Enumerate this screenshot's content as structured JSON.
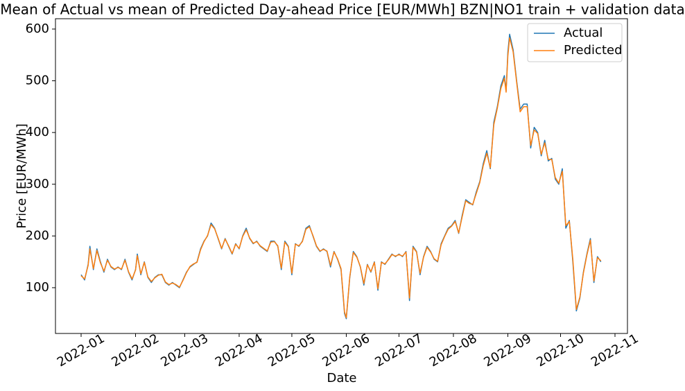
{
  "chart_data": {
    "type": "line",
    "title": "Mean of Actual vs mean of Predicted Day-ahead Price [EUR/MWh] BZN|NO1 train + validation data",
    "x_label": "Date",
    "y_label": "Price [EUR/MWh]",
    "x": [
      0,
      2,
      4,
      5,
      7,
      9,
      11,
      13,
      15,
      17,
      19,
      21,
      23,
      25,
      27,
      29,
      31,
      32,
      34,
      36,
      38,
      40,
      42,
      44,
      46,
      48,
      50,
      52,
      54,
      56,
      58,
      60,
      62,
      64,
      66,
      68,
      70,
      72,
      74,
      76,
      78,
      80,
      82,
      84,
      86,
      88,
      90,
      92,
      94,
      96,
      98,
      100,
      102,
      104,
      106,
      108,
      110,
      112,
      114,
      116,
      118,
      120,
      122,
      124,
      126,
      128,
      130,
      132,
      134,
      136,
      138,
      140,
      142,
      144,
      146,
      148,
      150,
      151,
      153,
      155,
      157,
      159,
      161,
      163,
      165,
      167,
      169,
      171,
      173,
      175,
      177,
      179,
      181,
      183,
      185,
      187,
      189,
      191,
      193,
      195,
      197,
      199,
      201,
      203,
      205,
      207,
      209,
      211,
      213,
      215,
      217,
      219,
      221,
      223,
      225,
      227,
      229,
      231,
      233,
      235,
      237,
      239,
      241,
      242,
      243,
      244,
      246,
      248,
      250,
      252,
      254,
      256,
      258,
      260,
      262,
      264,
      266,
      268,
      270,
      272,
      274,
      276,
      278,
      280,
      282,
      284,
      286,
      288,
      290,
      292,
      294,
      296
    ],
    "series": [
      {
        "name": "Actual",
        "color": "#1f77b4",
        "values": [
          125,
          115,
          145,
          180,
          135,
          175,
          150,
          130,
          155,
          140,
          135,
          140,
          135,
          155,
          130,
          115,
          135,
          165,
          125,
          150,
          120,
          110,
          120,
          125,
          125,
          110,
          105,
          110,
          105,
          100,
          115,
          130,
          140,
          145,
          150,
          175,
          190,
          200,
          225,
          215,
          195,
          175,
          195,
          180,
          165,
          185,
          175,
          200,
          215,
          195,
          185,
          190,
          180,
          175,
          170,
          190,
          190,
          180,
          135,
          190,
          180,
          125,
          185,
          180,
          190,
          215,
          220,
          200,
          180,
          170,
          175,
          170,
          140,
          170,
          155,
          135,
          50,
          40,
          120,
          170,
          160,
          140,
          105,
          145,
          130,
          150,
          95,
          150,
          145,
          155,
          165,
          160,
          165,
          160,
          170,
          75,
          180,
          170,
          125,
          160,
          180,
          170,
          155,
          150,
          185,
          200,
          215,
          220,
          230,
          205,
          240,
          270,
          265,
          260,
          285,
          305,
          340,
          365,
          330,
          420,
          450,
          490,
          510,
          480,
          555,
          590,
          560,
          500,
          445,
          455,
          455,
          370,
          410,
          400,
          355,
          385,
          345,
          350,
          310,
          300,
          330,
          215,
          230,
          150,
          55,
          80,
          130,
          165,
          195,
          110,
          160,
          150
        ]
      },
      {
        "name": "Predicted",
        "color": "#ff7f0e",
        "values": [
          123,
          117,
          143,
          175,
          137,
          172,
          148,
          132,
          153,
          141,
          136,
          139,
          136,
          153,
          131,
          117,
          134,
          162,
          127,
          149,
          121,
          112,
          119,
          124,
          126,
          111,
          106,
          109,
          106,
          101,
          114,
          129,
          141,
          146,
          149,
          173,
          189,
          201,
          222,
          214,
          196,
          176,
          194,
          181,
          166,
          184,
          176,
          199,
          212,
          196,
          186,
          189,
          181,
          176,
          171,
          188,
          189,
          181,
          138,
          188,
          179,
          128,
          184,
          181,
          189,
          213,
          218,
          201,
          181,
          171,
          174,
          171,
          143,
          169,
          156,
          137,
          53,
          42,
          122,
          168,
          159,
          141,
          108,
          144,
          131,
          149,
          98,
          149,
          146,
          154,
          164,
          161,
          164,
          161,
          169,
          80,
          178,
          169,
          128,
          159,
          178,
          169,
          156,
          151,
          183,
          199,
          213,
          219,
          228,
          206,
          237,
          268,
          263,
          261,
          282,
          303,
          336,
          360,
          332,
          415,
          447,
          485,
          505,
          478,
          548,
          583,
          556,
          497,
          440,
          450,
          450,
          375,
          405,
          398,
          358,
          380,
          348,
          348,
          313,
          302,
          325,
          220,
          228,
          155,
          58,
          82,
          128,
          163,
          192,
          113,
          158,
          152
        ]
      }
    ],
    "xlim": [
      -14.6,
      311.1
    ],
    "xticks": [
      {
        "value": 0,
        "label": "2022-01"
      },
      {
        "value": 31,
        "label": "2022-02"
      },
      {
        "value": 59,
        "label": "2022-03"
      },
      {
        "value": 90,
        "label": "2022-04"
      },
      {
        "value": 120,
        "label": "2022-05"
      },
      {
        "value": 151,
        "label": "2022-06"
      },
      {
        "value": 181,
        "label": "2022-07"
      },
      {
        "value": 212,
        "label": "2022-08"
      },
      {
        "value": 243,
        "label": "2022-09"
      },
      {
        "value": 273,
        "label": "2022-10"
      },
      {
        "value": 304,
        "label": "2022-11"
      }
    ],
    "ylim": [
      11.5,
      620
    ],
    "yticks": [
      100,
      200,
      300,
      400,
      500,
      600
    ],
    "grid": false,
    "legend": "upper right"
  }
}
